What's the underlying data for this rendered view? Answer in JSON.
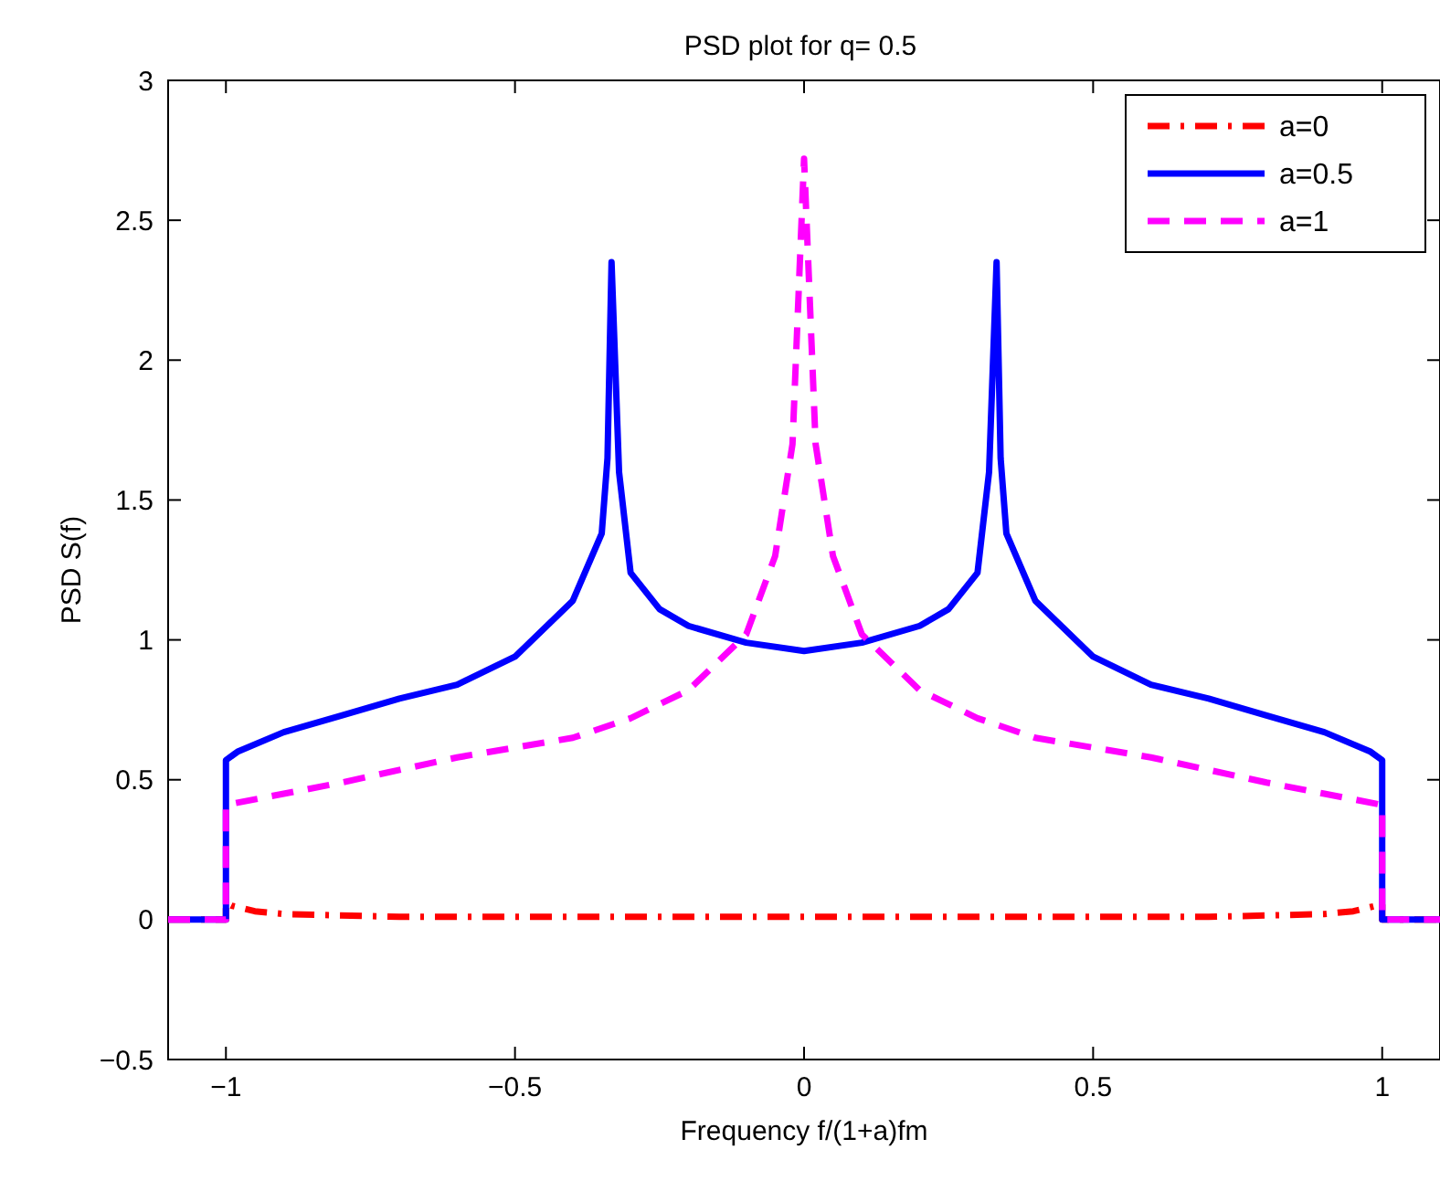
{
  "chart_data": {
    "type": "line",
    "title": "PSD plot for q= 0.5",
    "xlabel": "Frequency f/(1+a)fm",
    "ylabel": "PSD S(f)",
    "xlim": [
      -1.1,
      1.1
    ],
    "ylim": [
      -0.5,
      3
    ],
    "xticks": [
      {
        "value": -1,
        "label": "−1"
      },
      {
        "value": -0.5,
        "label": "−0.5"
      },
      0,
      0.5,
      1
    ],
    "yticks": [
      {
        "value": -0.5,
        "label": "−0.5"
      },
      0,
      0.5,
      1,
      1.5,
      2,
      2.5,
      3
    ],
    "legend": "top right",
    "grid": false,
    "series": [
      {
        "name": "a=0",
        "color": "#ff0000",
        "line_style": "dashdot",
        "x": [
          -1.1,
          -1,
          -1,
          -0.99,
          -0.95,
          -0.9,
          -0.7,
          -0.5,
          0,
          0.5,
          0.7,
          0.9,
          0.95,
          0.99,
          1,
          1,
          1.1
        ],
        "values": [
          0,
          0,
          0.06,
          0.05,
          0.03,
          0.02,
          0.01,
          0.01,
          0.01,
          0.01,
          0.01,
          0.02,
          0.03,
          0.05,
          0.06,
          0,
          0
        ]
      },
      {
        "name": "a=0.5",
        "color": "#0000ff",
        "line_style": "solid",
        "x": [
          -1.1,
          -1,
          -1,
          -0.98,
          -0.9,
          -0.8,
          -0.7,
          -0.6,
          -0.5,
          -0.4,
          -0.35,
          -0.34,
          -0.333,
          -0.32,
          -0.3,
          -0.25,
          -0.2,
          -0.1,
          0,
          0.1,
          0.2,
          0.25,
          0.3,
          0.32,
          0.333,
          0.34,
          0.35,
          0.4,
          0.5,
          0.6,
          0.7,
          0.8,
          0.9,
          0.98,
          1,
          1,
          1.1
        ],
        "values": [
          0,
          0,
          0.57,
          0.6,
          0.67,
          0.73,
          0.79,
          0.84,
          0.94,
          1.14,
          1.38,
          1.65,
          2.35,
          1.6,
          1.24,
          1.11,
          1.05,
          0.99,
          0.96,
          0.99,
          1.05,
          1.11,
          1.24,
          1.6,
          2.35,
          1.65,
          1.38,
          1.14,
          0.94,
          0.84,
          0.79,
          0.73,
          0.67,
          0.6,
          0.57,
          0,
          0
        ]
      },
      {
        "name": "a=1",
        "color": "#ff00ff",
        "line_style": "dashed",
        "x": [
          -1.1,
          -1,
          -1,
          -0.9,
          -0.8,
          -0.6,
          -0.4,
          -0.3,
          -0.2,
          -0.1,
          -0.05,
          -0.02,
          0,
          0.02,
          0.05,
          0.1,
          0.2,
          0.3,
          0.4,
          0.6,
          0.8,
          0.9,
          1,
          1,
          1.1
        ],
        "values": [
          0,
          0,
          0.41,
          0.45,
          0.49,
          0.58,
          0.65,
          0.72,
          0.82,
          1.02,
          1.3,
          1.7,
          2.72,
          1.7,
          1.3,
          1.02,
          0.82,
          0.72,
          0.65,
          0.58,
          0.49,
          0.45,
          0.41,
          0,
          0
        ]
      }
    ]
  }
}
